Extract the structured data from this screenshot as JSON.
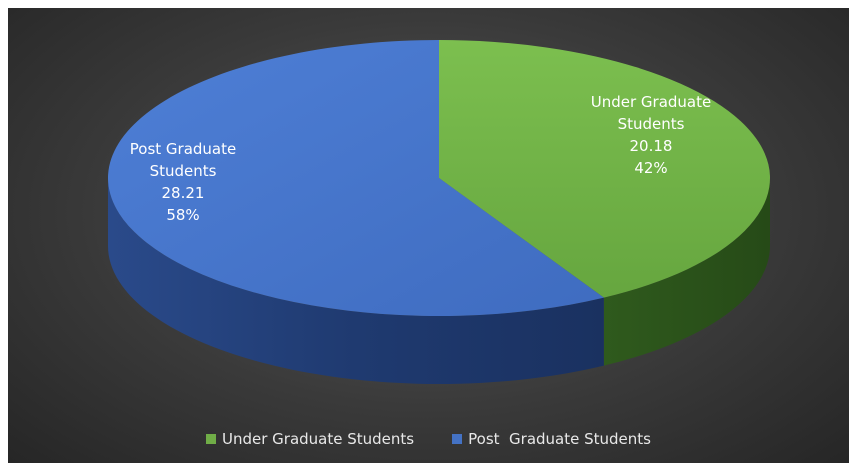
{
  "chart_data": {
    "type": "pie",
    "title": "",
    "slices": [
      {
        "name": "Under Graduate Students",
        "label_line1": "Under Graduate",
        "label_line2": "Students",
        "value": 20.18,
        "percent": "42%",
        "value_text": "20.18",
        "color": "#70ad47"
      },
      {
        "name": "Post Graduate Students",
        "label_line1": "Post  Graduate",
        "label_line2": "Students",
        "value": 28.21,
        "percent": "58%",
        "value_text": "28.21",
        "color": "#4472c4"
      }
    ],
    "legend_position": "bottom",
    "style": "3d"
  },
  "legend": {
    "items": [
      {
        "label": "Under Graduate Students",
        "color": "#70ad47"
      },
      {
        "label": "Post  Graduate Students",
        "color": "#4472c4"
      }
    ]
  }
}
